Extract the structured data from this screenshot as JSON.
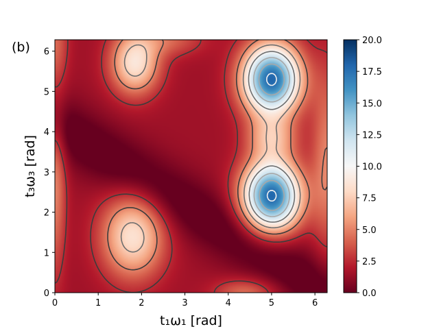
{
  "panel_label": "(b)",
  "chart_data": {
    "type": "heatmap",
    "xlabel": "t₁ω₁ [rad]",
    "ylabel": "t₃ω₃ [rad]",
    "xlim": [
      0,
      6.283
    ],
    "ylim": [
      0,
      6.283
    ],
    "x_ticks": [
      0,
      1,
      2,
      3,
      4,
      5,
      6
    ],
    "y_ticks": [
      0,
      1,
      2,
      3,
      4,
      5,
      6
    ],
    "colormap": "RdBu",
    "colorbar": {
      "range": [
        0.0,
        20.0
      ],
      "ticks": [
        0.0,
        2.5,
        5.0,
        7.5,
        10.0,
        12.5,
        15.0,
        17.5,
        20.0
      ],
      "tick_labels": [
        "0.0",
        "2.5",
        "5.0",
        "7.5",
        "10.0",
        "12.5",
        "15.0",
        "17.5",
        "20.0"
      ]
    },
    "contour_levels": [
      2.5,
      5.0,
      7.5,
      10.0,
      12.5,
      15.0,
      17.5
    ],
    "features": {
      "maxima": [
        {
          "x": 5.0,
          "y": 5.3,
          "value": 20.0
        },
        {
          "x": 5.0,
          "y": 2.4,
          "value": 20.0
        }
      ],
      "secondary_maxima": [
        {
          "x": 1.8,
          "y": 1.4,
          "value": 8.5
        },
        {
          "x": 1.85,
          "y": 5.7,
          "value": 8.5
        }
      ],
      "minimum_valley": "diagonal band from (0, 4.2) to (6.28, 0)"
    }
  }
}
